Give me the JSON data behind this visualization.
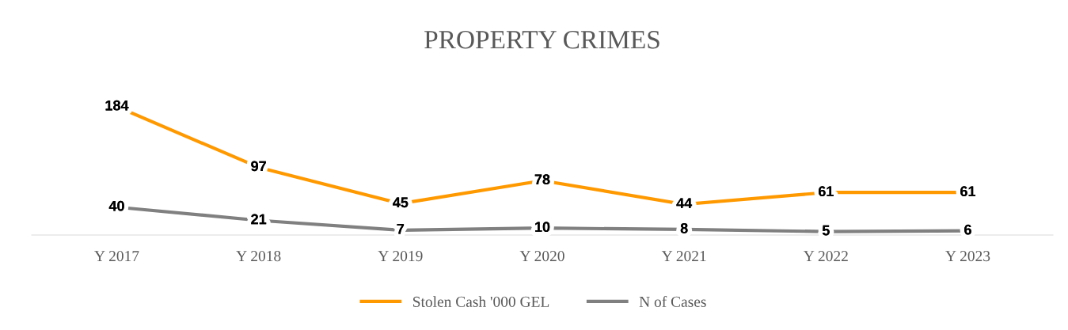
{
  "chart_data": {
    "type": "line",
    "title": "PROPERTY CRIMES",
    "categories": [
      "Y 2017",
      "Y 2018",
      "Y 2019",
      "Y 2020",
      "Y 2021",
      "Y 2022",
      "Y 2023"
    ],
    "series": [
      {
        "name": "Stolen Cash '000 GEL",
        "color": "#ff9900",
        "values": [
          184,
          97,
          45,
          78,
          44,
          61,
          61
        ]
      },
      {
        "name": "N of Cases",
        "color": "#808080",
        "values": [
          40,
          21,
          7,
          10,
          8,
          5,
          6
        ]
      }
    ],
    "tick_labels": "x",
    "data_labels": true,
    "legend": "bottom",
    "grid": false,
    "line_style": "solid"
  }
}
